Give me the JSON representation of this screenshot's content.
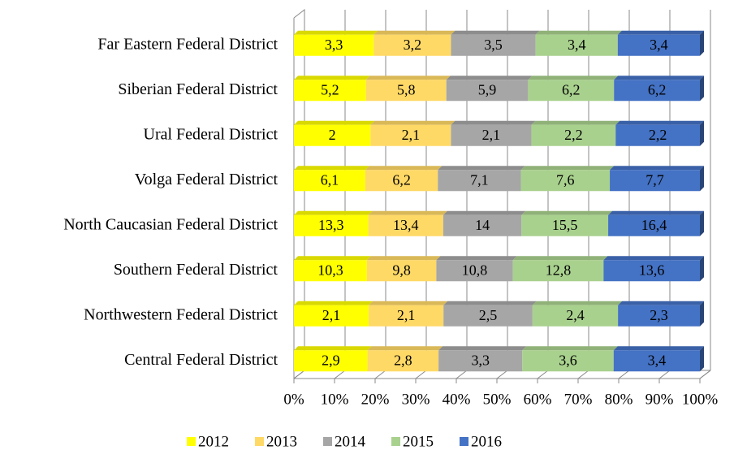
{
  "chart_data": {
    "type": "bar",
    "orientation": "horizontal",
    "stacking": "percent",
    "categories": [
      "Far Eastern Federal District",
      "Siberian Federal District",
      "Ural Federal District",
      "Volga Federal District",
      "North Caucasian Federal District",
      "Southern Federal District",
      "Northwestern Federal District",
      "Central Federal District"
    ],
    "series": [
      {
        "name": "2012",
        "color": "#ffff00",
        "values": [
          3.3,
          5.2,
          2,
          6.1,
          13.3,
          10.3,
          2.1,
          2.9
        ],
        "value_labels": [
          "3,3",
          "5,2",
          "2",
          "6,1",
          "13,3",
          "10,3",
          "2,1",
          "2,9"
        ]
      },
      {
        "name": "2013",
        "color": "#ffd966",
        "values": [
          3.2,
          5.8,
          2.1,
          6.2,
          13.4,
          9.8,
          2.1,
          2.8
        ],
        "value_labels": [
          "3,2",
          "5,8",
          "2,1",
          "6,2",
          "13,4",
          "9,8",
          "2,1",
          "2,8"
        ]
      },
      {
        "name": "2014",
        "color": "#a6a6a6",
        "values": [
          3.5,
          5.9,
          2.1,
          7.1,
          14,
          10.8,
          2.5,
          3.3
        ],
        "value_labels": [
          "3,5",
          "5,9",
          "2,1",
          "7,1",
          "14",
          "10,8",
          "2,5",
          "3,3"
        ]
      },
      {
        "name": "2015",
        "color": "#a9d18e",
        "values": [
          3.4,
          6.2,
          2.2,
          7.6,
          15.5,
          12.8,
          2.4,
          3.6
        ],
        "value_labels": [
          "3,4",
          "6,2",
          "2,2",
          "7,6",
          "15,5",
          "12,8",
          "2,4",
          "3,6"
        ]
      },
      {
        "name": "2016",
        "color": "#4472c4",
        "values": [
          3.4,
          6.2,
          2.2,
          7.7,
          16.4,
          13.6,
          2.3,
          3.4
        ],
        "value_labels": [
          "3,4",
          "6,2",
          "2,2",
          "7,7",
          "16,4",
          "13,6",
          "2,3",
          "3,4"
        ]
      }
    ],
    "xlim": [
      0,
      100
    ],
    "xticks": [
      {
        "value": 0,
        "label": "0%"
      },
      {
        "value": 10,
        "label": "10%"
      },
      {
        "value": 20,
        "label": "20%"
      },
      {
        "value": 30,
        "label": "30%"
      },
      {
        "value": 40,
        "label": "40%"
      },
      {
        "value": 50,
        "label": "50%"
      },
      {
        "value": 60,
        "label": "60%"
      },
      {
        "value": 70,
        "label": "70%"
      },
      {
        "value": 80,
        "label": "80%"
      },
      {
        "value": 90,
        "label": "90%"
      },
      {
        "value": 100,
        "label": "100%"
      }
    ],
    "grid": true,
    "legend": "bottom"
  }
}
